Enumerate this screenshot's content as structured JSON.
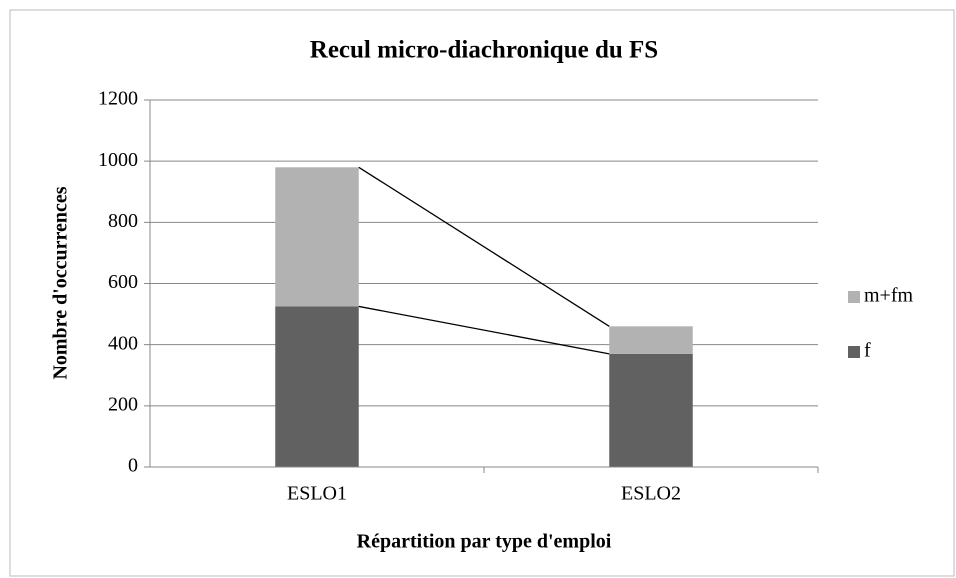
{
  "chart_data": {
    "type": "stacked_bar",
    "title": "Recul micro-diachronique du FS",
    "x_label": "Répartition par type d'emploi",
    "y_label": "Nombre d'occurrences",
    "categories": [
      "ESLO1",
      "ESLO2"
    ],
    "series": [
      {
        "name": "f",
        "color": "#616161",
        "values": [
          525,
          370
        ]
      },
      {
        "name": "m+fm",
        "color": "#b2b2b2",
        "values": [
          455,
          90
        ]
      }
    ],
    "ylim": [
      0,
      1200
    ],
    "yticks": [
      0,
      200,
      400,
      600,
      800,
      1000,
      1200
    ],
    "grid": true,
    "series_lines": true,
    "legend": "right"
  }
}
